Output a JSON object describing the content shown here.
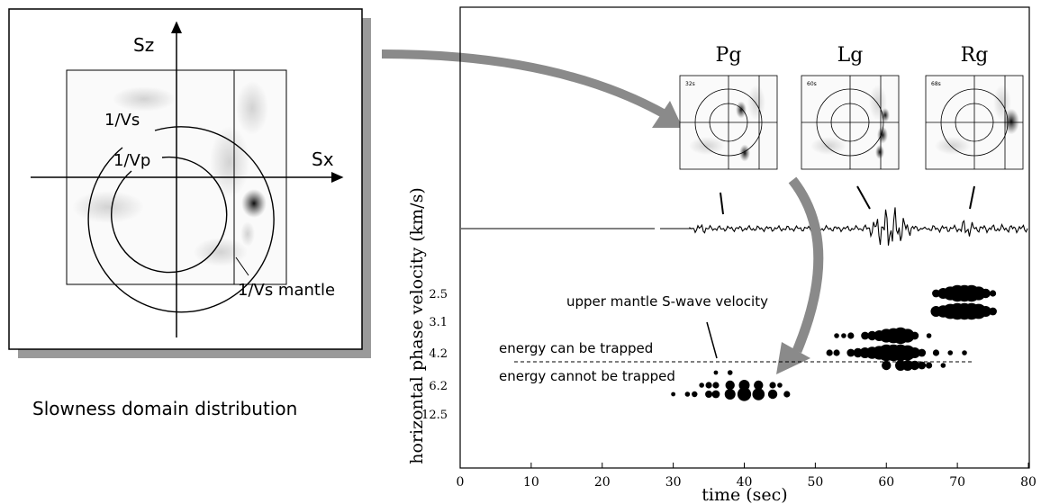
{
  "left_panel": {
    "axis_vertical": "Sz",
    "axis_horizontal": "Sx",
    "label_vs": "1/Vs",
    "label_vp": "1/Vp",
    "label_vs_mantle": "1/Vs mantle",
    "caption": "Slowness domain distribution"
  },
  "insets": [
    {
      "title": "Pg",
      "tag": "32s"
    },
    {
      "title": "Lg",
      "tag": "60s"
    },
    {
      "title": "Rg",
      "tag": "68s"
    }
  ],
  "annotations": {
    "upper_mantle": "upper mantle S-wave velocity",
    "can_trap": "energy can be trapped",
    "cannot_trap": "energy cannot be trapped"
  },
  "chart_data": {
    "type": "scatter",
    "xlabel": "time (sec)",
    "ylabel": "horizontal phase velocity (km/s)",
    "xlim": [
      0,
      80
    ],
    "x_ticks": [
      "0",
      "10",
      "20",
      "30",
      "40",
      "50",
      "60",
      "70",
      "80"
    ],
    "y_ticks": [
      "2.5",
      "3.1",
      "4.2",
      "6.2",
      "12.5"
    ],
    "velocity_rows": [
      {
        "velocity": "2.5",
        "points": [
          [
            67,
            0.4
          ],
          [
            68,
            0.6
          ],
          [
            69,
            0.8
          ],
          [
            70,
            1.0
          ],
          [
            71,
            1.0
          ],
          [
            72,
            1.0
          ],
          [
            73,
            0.8
          ],
          [
            74,
            0.5
          ],
          [
            75,
            0.3
          ]
        ]
      },
      {
        "velocity": "3.1",
        "points": [
          [
            67,
            0.6
          ],
          [
            68,
            0.7
          ],
          [
            69,
            0.9
          ],
          [
            70,
            1.0
          ],
          [
            71,
            1.0
          ],
          [
            72,
            1.0
          ],
          [
            73,
            0.9
          ],
          [
            74,
            0.6
          ],
          [
            75,
            0.4
          ]
        ]
      },
      {
        "velocity": "3.6",
        "points": [
          [
            53,
            0.2
          ],
          [
            54,
            0.2
          ],
          [
            55,
            0.3
          ],
          [
            57,
            0.4
          ],
          [
            58,
            0.5
          ],
          [
            59,
            0.6
          ],
          [
            60,
            0.8
          ],
          [
            61,
            0.9
          ],
          [
            62,
            1.0
          ],
          [
            63,
            0.8
          ],
          [
            64,
            0.4
          ],
          [
            66,
            0.2
          ]
        ]
      },
      {
        "velocity": "4.2",
        "points": [
          [
            52,
            0.3
          ],
          [
            53,
            0.3
          ],
          [
            55,
            0.4
          ],
          [
            56,
            0.5
          ],
          [
            57,
            0.6
          ],
          [
            58,
            0.7
          ],
          [
            59,
            0.8
          ],
          [
            60,
            1.0
          ],
          [
            61,
            1.0
          ],
          [
            62,
            1.0
          ],
          [
            63,
            0.9
          ],
          [
            64,
            0.6
          ],
          [
            65,
            0.4
          ],
          [
            67,
            0.3
          ],
          [
            69,
            0.2
          ],
          [
            71,
            0.2
          ]
        ]
      },
      {
        "velocity": "4.9",
        "points": [
          [
            60,
            0.5
          ],
          [
            62,
            0.6
          ],
          [
            63,
            0.6
          ],
          [
            64,
            0.5
          ],
          [
            65,
            0.4
          ],
          [
            66,
            0.3
          ],
          [
            68,
            0.2
          ]
        ]
      },
      {
        "velocity": "5.5",
        "points": [
          [
            36,
            0.15
          ],
          [
            38,
            0.2
          ]
        ]
      },
      {
        "velocity": "6.2",
        "points": [
          [
            34,
            0.2
          ],
          [
            35,
            0.3
          ],
          [
            36,
            0.3
          ],
          [
            38,
            0.5
          ],
          [
            40,
            0.6
          ],
          [
            42,
            0.5
          ],
          [
            44,
            0.3
          ],
          [
            45,
            0.2
          ]
        ]
      },
      {
        "velocity": "12.5",
        "points": [
          [
            30,
            0.15
          ],
          [
            32,
            0.2
          ],
          [
            33,
            0.25
          ],
          [
            35,
            0.35
          ],
          [
            36,
            0.4
          ],
          [
            38,
            0.6
          ],
          [
            40,
            0.8
          ],
          [
            42,
            0.7
          ],
          [
            44,
            0.5
          ],
          [
            46,
            0.3
          ]
        ]
      }
    ]
  }
}
